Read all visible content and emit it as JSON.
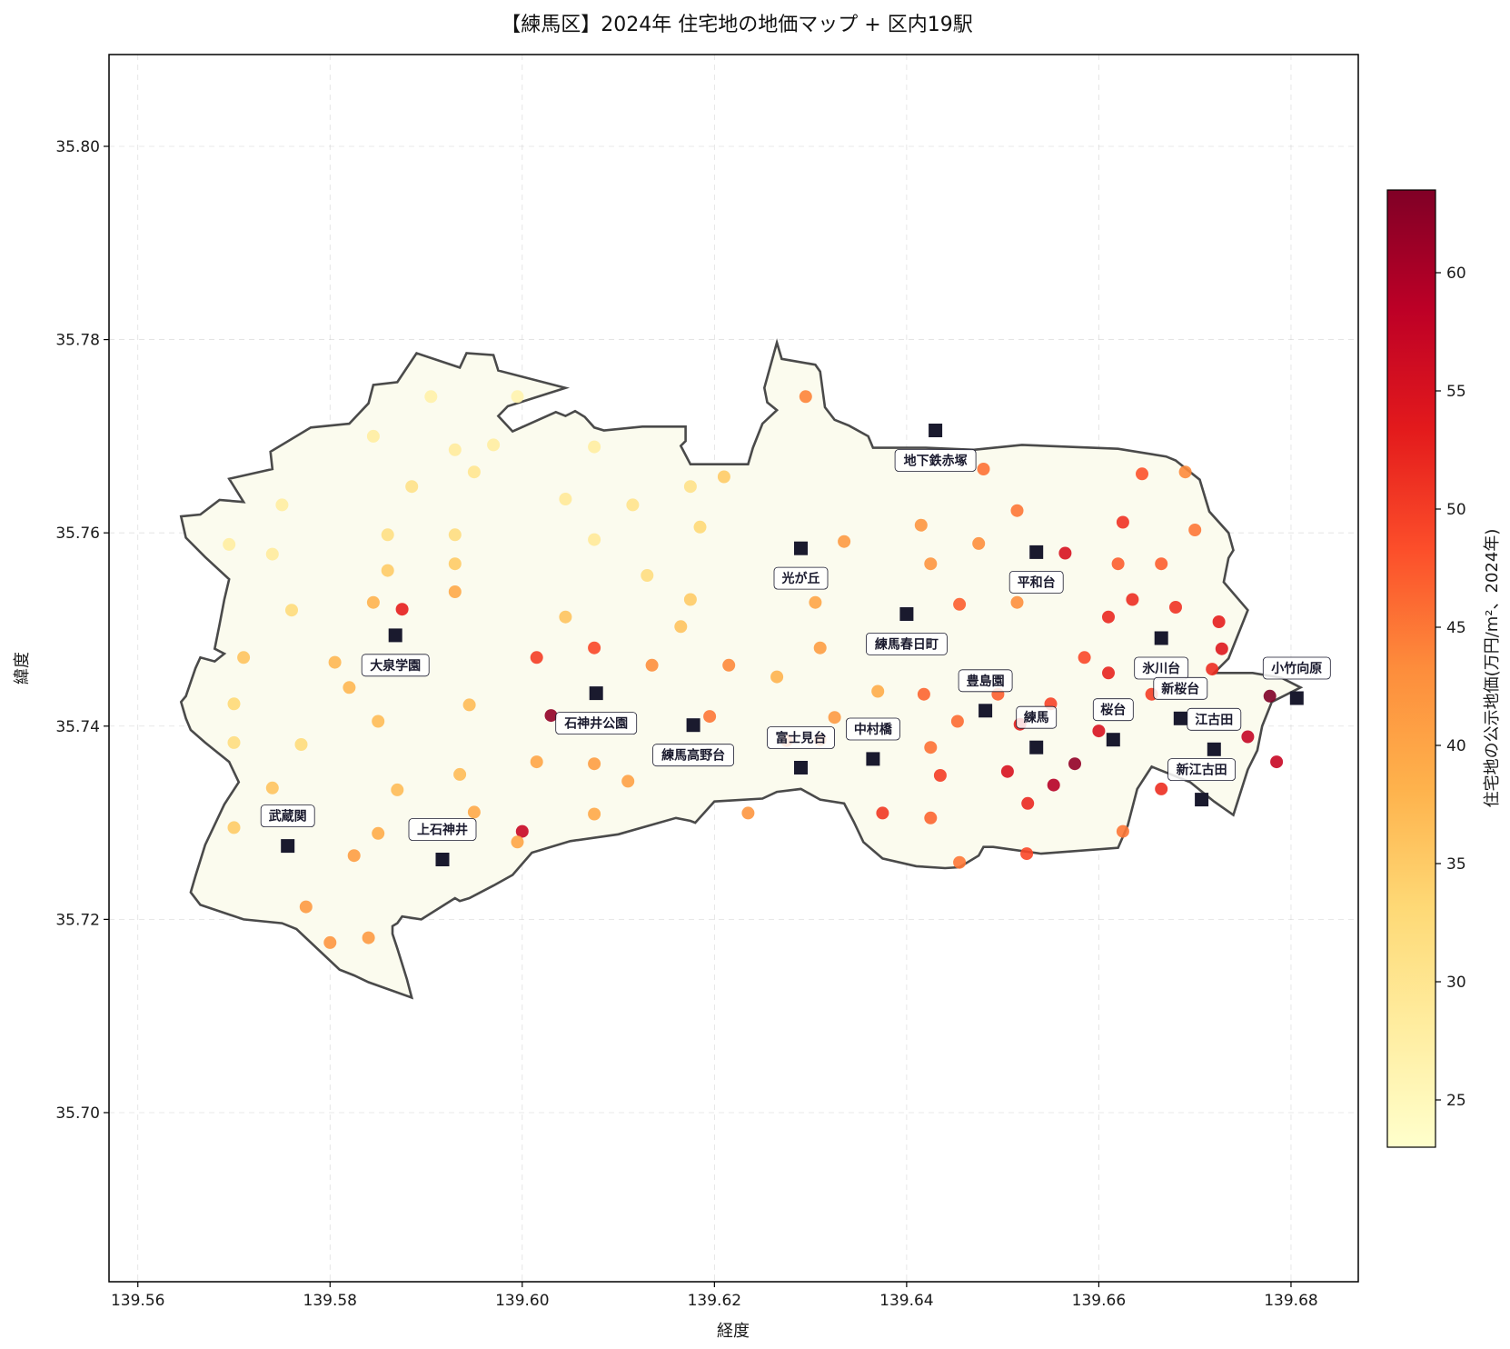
{
  "chart_data": {
    "type": "scatter",
    "title": "【練馬区】2024年 住宅地の地価マップ + 区内19駅",
    "xlabel": "経度",
    "ylabel": "緯度",
    "colorbar_label": "住宅地の公示地価(万円/m²、2024年)",
    "xlim": [
      139.557,
      139.687
    ],
    "ylim": [
      35.6825,
      35.8095
    ],
    "xticks": [
      "139.56",
      "139.58",
      "139.60",
      "139.62",
      "139.64",
      "139.66",
      "139.68"
    ],
    "yticks": [
      "35.70",
      "35.72",
      "35.74",
      "35.76",
      "35.78",
      "35.80"
    ],
    "colorbar_range": [
      23.0,
      63.5
    ],
    "colorbar_ticks": [
      "25",
      "30",
      "35",
      "40",
      "45",
      "50",
      "55",
      "60"
    ],
    "colormap": [
      "#ffffcc",
      "#ffeda0",
      "#fed976",
      "#feb24c",
      "#fd8d3c",
      "#fc4e2a",
      "#e31a1c",
      "#bd0026",
      "#800026"
    ],
    "grid": true,
    "boundary": [
      [
        139.5645,
        35.7617
      ],
      [
        139.5665,
        35.7619
      ],
      [
        139.5685,
        35.7634
      ],
      [
        139.571,
        35.7632
      ],
      [
        139.5695,
        35.7656
      ],
      [
        139.574,
        35.7666
      ],
      [
        139.5738,
        35.7684
      ],
      [
        139.578,
        35.7709
      ],
      [
        139.582,
        35.7713
      ],
      [
        139.584,
        35.7734
      ],
      [
        139.5845,
        35.7753
      ],
      [
        139.587,
        35.7756
      ],
      [
        139.589,
        35.7786
      ],
      [
        139.5935,
        35.7771
      ],
      [
        139.5942,
        35.7786
      ],
      [
        139.597,
        35.7784
      ],
      [
        139.5975,
        35.7768
      ],
      [
        139.6045,
        35.775
      ],
      [
        139.5985,
        35.7731
      ],
      [
        139.5975,
        35.7721
      ],
      [
        139.599,
        35.7705
      ],
      [
        139.6035,
        35.7725
      ],
      [
        139.6045,
        35.7721
      ],
      [
        139.6055,
        35.7726
      ],
      [
        139.6065,
        35.772
      ],
      [
        139.6075,
        35.7709
      ],
      [
        139.6085,
        35.7706
      ],
      [
        139.6125,
        35.771
      ],
      [
        139.617,
        35.771
      ],
      [
        139.617,
        35.7695
      ],
      [
        139.6165,
        35.769
      ],
      [
        139.6175,
        35.7671
      ],
      [
        139.6235,
        35.7671
      ],
      [
        139.624,
        35.7688
      ],
      [
        139.625,
        35.7713
      ],
      [
        139.6265,
        35.7727
      ],
      [
        139.6255,
        35.7735
      ],
      [
        139.6252,
        35.775
      ],
      [
        139.6265,
        35.7797
      ],
      [
        139.627,
        35.778
      ],
      [
        139.6305,
        35.7774
      ],
      [
        139.631,
        35.7767
      ],
      [
        139.6315,
        35.773
      ],
      [
        139.6325,
        35.7717
      ],
      [
        139.634,
        35.7711
      ],
      [
        139.636,
        35.77
      ],
      [
        139.6365,
        35.7688
      ],
      [
        139.642,
        35.7688
      ],
      [
        139.647,
        35.7686
      ],
      [
        139.652,
        35.7691
      ],
      [
        139.662,
        35.7687
      ],
      [
        139.667,
        35.7679
      ],
      [
        139.668,
        35.7675
      ],
      [
        139.6705,
        35.7655
      ],
      [
        139.6715,
        35.7622
      ],
      [
        139.6735,
        35.76
      ],
      [
        139.674,
        35.7582
      ],
      [
        139.6735,
        35.7574
      ],
      [
        139.673,
        35.7549
      ],
      [
        139.6755,
        35.752
      ],
      [
        139.6735,
        35.747
      ],
      [
        139.672,
        35.7455
      ],
      [
        139.676,
        35.7455
      ],
      [
        139.679,
        35.745
      ],
      [
        139.681,
        35.744
      ],
      [
        139.678,
        35.7425
      ],
      [
        139.677,
        35.74
      ],
      [
        139.6765,
        35.7375
      ],
      [
        139.6755,
        35.7355
      ],
      [
        139.674,
        35.7308
      ],
      [
        139.672,
        35.7322
      ],
      [
        139.6695,
        35.7342
      ],
      [
        139.6655,
        35.7358
      ],
      [
        139.664,
        35.7335
      ],
      [
        139.663,
        35.7297
      ],
      [
        139.662,
        35.7274
      ],
      [
        139.654,
        35.7268
      ],
      [
        139.649,
        35.7275
      ],
      [
        139.648,
        35.7275
      ],
      [
        139.6475,
        35.7266
      ],
      [
        139.6455,
        35.7254
      ],
      [
        139.644,
        35.7253
      ],
      [
        139.641,
        35.7255
      ],
      [
        139.6375,
        35.7263
      ],
      [
        139.6355,
        35.728
      ],
      [
        139.6345,
        35.7301
      ],
      [
        139.6335,
        35.732
      ],
      [
        139.631,
        35.7324
      ],
      [
        139.629,
        35.7335
      ],
      [
        139.6265,
        35.7332
      ],
      [
        139.625,
        35.7325
      ],
      [
        139.62,
        35.7322
      ],
      [
        139.618,
        35.73
      ],
      [
        139.6175,
        35.7302
      ],
      [
        139.616,
        35.7305
      ],
      [
        139.61,
        35.7288
      ],
      [
        139.605,
        35.7281
      ],
      [
        139.601,
        35.7269
      ],
      [
        139.599,
        35.7246
      ],
      [
        139.597,
        35.7235
      ],
      [
        139.5945,
        35.7222
      ],
      [
        139.5935,
        35.7219
      ],
      [
        139.593,
        35.7222
      ],
      [
        139.5895,
        35.72
      ],
      [
        139.5875,
        35.7203
      ],
      [
        139.587,
        35.7196
      ],
      [
        139.5865,
        35.7193
      ],
      [
        139.5865,
        35.7185
      ],
      [
        139.587,
        35.717
      ],
      [
        139.5875,
        35.7154
      ],
      [
        139.588,
        35.7138
      ],
      [
        139.5885,
        35.7119
      ],
      [
        139.584,
        35.7135
      ],
      [
        139.5825,
        35.7142
      ],
      [
        139.581,
        35.7148
      ],
      [
        139.5765,
        35.719
      ],
      [
        139.575,
        35.7196
      ],
      [
        139.571,
        35.72
      ],
      [
        139.5665,
        35.7215
      ],
      [
        139.5655,
        35.7228
      ],
      [
        139.566,
        35.7245
      ],
      [
        139.567,
        35.7277
      ],
      [
        139.569,
        35.7319
      ],
      [
        139.5705,
        35.7342
      ],
      [
        139.5695,
        35.7363
      ],
      [
        139.567,
        35.7383
      ],
      [
        139.5655,
        35.7396
      ],
      [
        139.565,
        35.7408
      ],
      [
        139.5645,
        35.7425
      ],
      [
        139.565,
        35.7431
      ],
      [
        139.566,
        35.746
      ],
      [
        139.5665,
        35.7471
      ],
      [
        139.568,
        35.7467
      ],
      [
        139.569,
        35.7475
      ],
      [
        139.568,
        35.748
      ],
      [
        139.5685,
        35.7505
      ],
      [
        139.569,
        35.7531
      ],
      [
        139.5695,
        35.7552
      ],
      [
        139.567,
        35.7575
      ],
      [
        139.565,
        35.7595
      ],
      [
        139.5645,
        35.7617
      ]
    ],
    "points": [
      [
        139.5875,
        35.7521,
        53.0
      ],
      [
        139.6,
        35.7291,
        57.0
      ],
      [
        139.603,
        35.7411,
        62.0
      ],
      [
        139.5905,
        35.7741,
        27.0
      ],
      [
        139.5995,
        35.7741,
        26.5
      ],
      [
        139.5845,
        35.77,
        28.0
      ],
      [
        139.593,
        35.7686,
        28.5
      ],
      [
        139.597,
        35.7691,
        28.0
      ],
      [
        139.595,
        35.7663,
        30.0
      ],
      [
        139.5885,
        35.7648,
        31.0
      ],
      [
        139.575,
        35.7629,
        28.0
      ],
      [
        139.5695,
        35.7588,
        28.0
      ],
      [
        139.574,
        35.7578,
        28.5
      ],
      [
        139.586,
        35.7598,
        31.5
      ],
      [
        139.593,
        35.7598,
        32.0
      ],
      [
        139.586,
        35.7561,
        35.0
      ],
      [
        139.593,
        35.7568,
        35.0
      ],
      [
        139.576,
        35.752,
        32.5
      ],
      [
        139.5845,
        35.7528,
        38.0
      ],
      [
        139.593,
        35.7539,
        39.5
      ],
      [
        139.571,
        35.7471,
        36.0
      ],
      [
        139.5805,
        35.7466,
        37.5
      ],
      [
        139.57,
        35.7423,
        33.0
      ],
      [
        139.582,
        35.744,
        37.5
      ],
      [
        139.585,
        35.7405,
        37.0
      ],
      [
        139.5945,
        35.7422,
        37.0
      ],
      [
        139.57,
        35.7383,
        32.0
      ],
      [
        139.577,
        35.7381,
        32.5
      ],
      [
        139.574,
        35.7336,
        36.0
      ],
      [
        139.587,
        35.7334,
        37.0
      ],
      [
        139.5935,
        35.735,
        37.0
      ],
      [
        139.595,
        35.7311,
        39.5
      ],
      [
        139.57,
        35.7295,
        35.0
      ],
      [
        139.585,
        35.7289,
        39.0
      ],
      [
        139.5825,
        35.7266,
        41.0
      ],
      [
        139.5995,
        35.728,
        40.0
      ],
      [
        139.5775,
        35.7213,
        41.5
      ],
      [
        139.584,
        35.7181,
        41.5
      ],
      [
        139.58,
        35.7176,
        42.0
      ],
      [
        139.6015,
        35.7471,
        50.0
      ],
      [
        139.6075,
        35.7481,
        49.0
      ],
      [
        139.6075,
        35.7593,
        29.0
      ],
      [
        139.6075,
        35.7689,
        28.0
      ],
      [
        139.6045,
        35.7635,
        29.0
      ],
      [
        139.6045,
        35.7513,
        36.0
      ],
      [
        139.6115,
        35.7629,
        30.5
      ],
      [
        139.613,
        35.7556,
        32.0
      ],
      [
        139.6175,
        35.7648,
        31.0
      ],
      [
        139.6185,
        35.7606,
        33.0
      ],
      [
        139.621,
        35.7658,
        35.0
      ],
      [
        139.6175,
        35.7531,
        35.0
      ],
      [
        139.6165,
        35.7503,
        36.0
      ],
      [
        139.6135,
        35.7463,
        43.0
      ],
      [
        139.6215,
        35.7463,
        43.5
      ],
      [
        139.6195,
        35.741,
        45.0
      ],
      [
        139.6015,
        35.7363,
        40.0
      ],
      [
        139.6075,
        35.7361,
        41.0
      ],
      [
        139.611,
        35.7343,
        40.5
      ],
      [
        139.6075,
        35.7309,
        39.5
      ],
      [
        139.6235,
        35.731,
        42.0
      ],
      [
        139.6265,
        35.7451,
        38.0
      ],
      [
        139.6275,
        35.7385,
        46.0
      ],
      [
        139.631,
        35.7386,
        44.5
      ],
      [
        139.631,
        35.7481,
        41.0
      ],
      [
        139.6305,
        35.7528,
        40.0
      ],
      [
        139.6335,
        35.7591,
        41.5
      ],
      [
        139.6325,
        35.7409,
        41.5
      ],
      [
        139.637,
        35.7436,
        39.0
      ],
      [
        139.6375,
        35.731,
        50.5
      ],
      [
        139.6295,
        35.7741,
        44.0
      ],
      [
        139.648,
        35.7666,
        45.5
      ],
      [
        139.6415,
        35.7608,
        42.0
      ],
      [
        139.6425,
        35.7568,
        42.0
      ],
      [
        139.6455,
        35.7526,
        47.0
      ],
      [
        139.6475,
        35.7589,
        43.0
      ],
      [
        139.6515,
        35.7623,
        45.0
      ],
      [
        139.6515,
        35.7528,
        43.0
      ],
      [
        139.6418,
        35.7433,
        46.5
      ],
      [
        139.6453,
        35.7405,
        46.0
      ],
      [
        139.6425,
        35.7378,
        45.5
      ],
      [
        139.6435,
        35.7349,
        50.0
      ],
      [
        139.6425,
        35.7305,
        46.5
      ],
      [
        139.6455,
        35.7259,
        45.0
      ],
      [
        139.6495,
        35.7433,
        47.0
      ],
      [
        139.6505,
        35.7353,
        55.0
      ],
      [
        139.6518,
        35.7402,
        53.0
      ],
      [
        139.6526,
        35.732,
        52.0
      ],
      [
        139.6525,
        35.7268,
        49.0
      ],
      [
        139.655,
        35.7423,
        49.5
      ],
      [
        139.6553,
        35.7339,
        59.0
      ],
      [
        139.6575,
        35.7361,
        62.0
      ],
      [
        139.6565,
        35.7579,
        55.0
      ],
      [
        139.6585,
        35.7471,
        49.0
      ],
      [
        139.66,
        35.7395,
        55.0
      ],
      [
        139.661,
        35.7513,
        52.0
      ],
      [
        139.661,
        35.7455,
        52.5
      ],
      [
        139.6625,
        35.7611,
        51.0
      ],
      [
        139.662,
        35.7568,
        47.0
      ],
      [
        139.6635,
        35.7531,
        51.5
      ],
      [
        139.6645,
        35.7661,
        48.0
      ],
      [
        139.6625,
        35.7291,
        45.0
      ],
      [
        139.6655,
        35.7433,
        50.0
      ],
      [
        139.6665,
        35.7335,
        51.5
      ],
      [
        139.6665,
        35.7568,
        47.0
      ],
      [
        139.668,
        35.7523,
        51.0
      ],
      [
        139.67,
        35.7603,
        45.0
      ],
      [
        139.669,
        35.7663,
        43.5
      ],
      [
        139.6725,
        35.7508,
        53.0
      ],
      [
        139.6728,
        35.748,
        54.0
      ],
      [
        139.6718,
        35.7459,
        51.5
      ],
      [
        139.6755,
        35.7389,
        57.5
      ],
      [
        139.6785,
        35.7363,
        57.0
      ],
      [
        139.6778,
        35.7431,
        63.5
      ]
    ],
    "stations": [
      {
        "name": "地下鉄赤塚",
        "lon": 139.643,
        "lat": 35.7706,
        "label_dy": 0.0031
      },
      {
        "name": "光が丘",
        "lon": 139.629,
        "lat": 35.7584,
        "label_dy": 0.0031
      },
      {
        "name": "平和台",
        "lon": 139.6535,
        "lat": 35.758,
        "label_dy": 0.0031
      },
      {
        "name": "練馬春日町",
        "lon": 139.64,
        "lat": 35.7516,
        "label_dy": 0.0031
      },
      {
        "name": "大泉学園",
        "lon": 139.5868,
        "lat": 35.7494,
        "label_dy": 0.0031
      },
      {
        "name": "氷川台",
        "lon": 139.6665,
        "lat": 35.7491,
        "label_dy": 0.0031
      },
      {
        "name": "石神井公園",
        "lon": 139.6077,
        "lat": 35.7434,
        "label_dy": 0.0031
      },
      {
        "name": "小竹向原",
        "lon": 139.6806,
        "lat": 35.7429,
        "label_dy": -0.0031
      },
      {
        "name": "練馬高野台",
        "lon": 139.6178,
        "lat": 35.7401,
        "label_dy": 0.0031
      },
      {
        "name": "豊島園",
        "lon": 139.6482,
        "lat": 35.7416,
        "label_dy": -0.0031
      },
      {
        "name": "新桜台",
        "lon": 139.6685,
        "lat": 35.7408,
        "label_dy": -0.0031
      },
      {
        "name": "桜台",
        "lon": 139.6615,
        "lat": 35.7386,
        "label_dy": -0.0031
      },
      {
        "name": "練馬",
        "lon": 139.6535,
        "lat": 35.7378,
        "label_dy": -0.0031
      },
      {
        "name": "江古田",
        "lon": 139.672,
        "lat": 35.7376,
        "label_dy": -0.0031
      },
      {
        "name": "中村橋",
        "lon": 139.6365,
        "lat": 35.7366,
        "label_dy": -0.0031
      },
      {
        "name": "富士見台",
        "lon": 139.629,
        "lat": 35.7357,
        "label_dy": -0.0031
      },
      {
        "name": "新江古田",
        "lon": 139.6707,
        "lat": 35.7324,
        "label_dy": -0.0031
      },
      {
        "name": "武蔵関",
        "lon": 139.5756,
        "lat": 35.7276,
        "label_dy": -0.0031
      },
      {
        "name": "上石神井",
        "lon": 139.5917,
        "lat": 35.7262,
        "label_dy": -0.0031
      }
    ]
  }
}
